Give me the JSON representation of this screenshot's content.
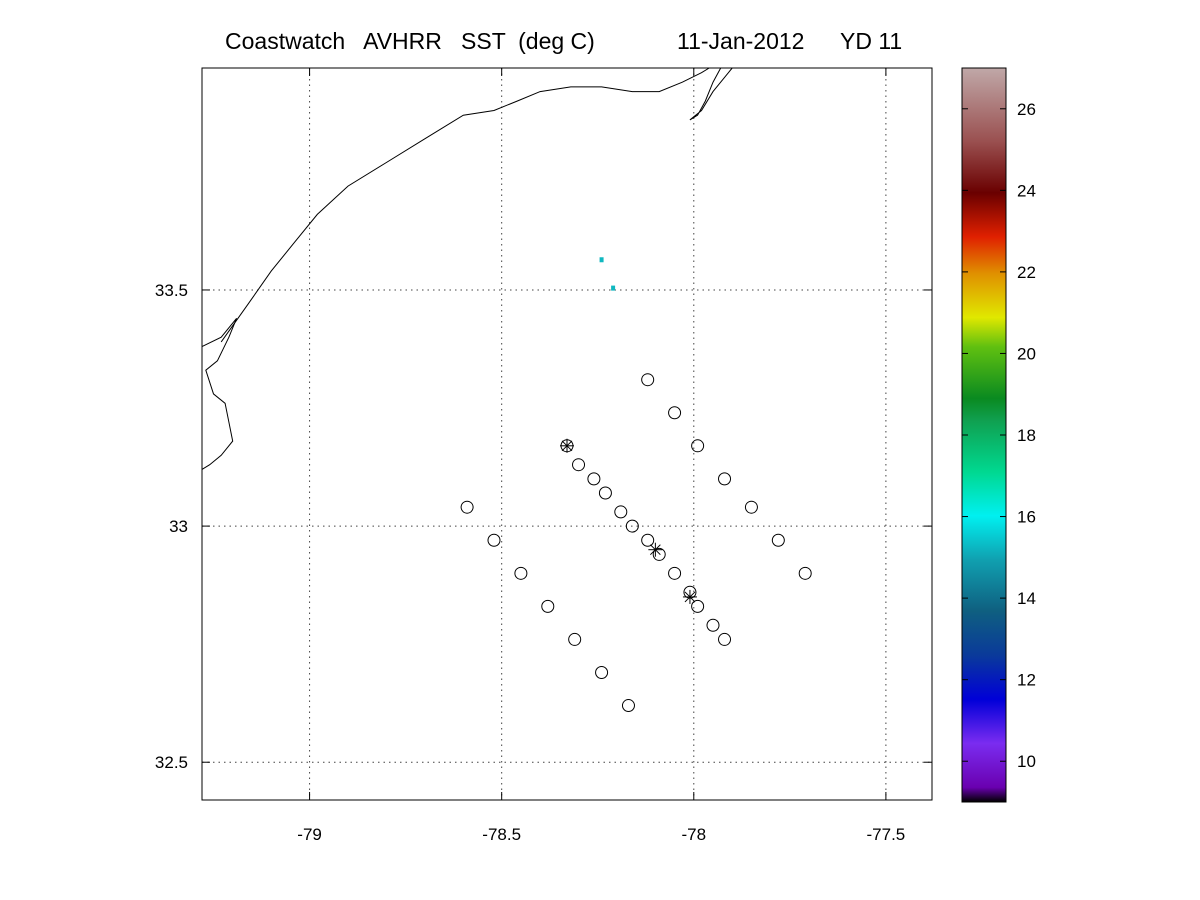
{
  "title": {
    "product": "Coastwatch   AVHRR   SST  (deg C)",
    "date": "11-Jan-2012",
    "yearday": "YD 11"
  },
  "chart_data": {
    "type": "scatter",
    "title": "Coastwatch   AVHRR   SST  (deg C)",
    "xlabel": "",
    "ylabel": "",
    "xlim": [
      -79.28,
      -77.38
    ],
    "ylim": [
      32.42,
      33.97
    ],
    "grid": true,
    "x_ticks": [
      -79,
      -78.5,
      -78,
      -77.5
    ],
    "x_tick_labels": [
      "-79",
      "-78.5",
      "-78",
      "-77.5"
    ],
    "y_ticks": [
      32.5,
      33,
      33.5
    ],
    "y_tick_labels": [
      "32.5",
      "33",
      "33.5"
    ],
    "stations_circle": [
      [
        -78.12,
        33.31
      ],
      [
        -78.05,
        33.24
      ],
      [
        -77.99,
        33.17
      ],
      [
        -77.92,
        33.1
      ],
      [
        -77.85,
        33.04
      ],
      [
        -77.78,
        32.97
      ],
      [
        -77.71,
        32.9
      ],
      [
        -78.33,
        33.17
      ],
      [
        -78.3,
        33.13
      ],
      [
        -78.26,
        33.1
      ],
      [
        -78.23,
        33.07
      ],
      [
        -78.19,
        33.03
      ],
      [
        -78.16,
        33.0
      ],
      [
        -78.12,
        32.97
      ],
      [
        -78.09,
        32.94
      ],
      [
        -78.05,
        32.9
      ],
      [
        -78.01,
        32.86
      ],
      [
        -77.99,
        32.83
      ],
      [
        -77.95,
        32.79
      ],
      [
        -77.92,
        32.76
      ],
      [
        -78.59,
        33.04
      ],
      [
        -78.52,
        32.97
      ],
      [
        -78.45,
        32.9
      ],
      [
        -78.38,
        32.83
      ],
      [
        -78.31,
        32.76
      ],
      [
        -78.24,
        32.69
      ],
      [
        -78.17,
        32.62
      ]
    ],
    "stations_star": [
      [
        -78.33,
        33.17
      ],
      [
        -78.1,
        32.95
      ],
      [
        -78.01,
        32.85
      ]
    ],
    "sst_pixels": [
      {
        "lon": -78.24,
        "lat": 33.565,
        "value": 14.5
      },
      {
        "lon": -78.21,
        "lat": 33.505,
        "value": 14.5
      }
    ],
    "colorbar": {
      "range": [
        9,
        27
      ],
      "ticks": [
        10,
        12,
        14,
        16,
        18,
        20,
        22,
        24,
        26
      ],
      "tick_labels": [
        "10",
        "12",
        "14",
        "16",
        "18",
        "20",
        "22",
        "24",
        "26"
      ]
    },
    "coastline": [
      [
        -79.28,
        33.38
      ],
      [
        -79.23,
        33.4
      ],
      [
        -79.19,
        33.44
      ],
      [
        -79.21,
        33.4
      ],
      [
        -79.24,
        33.35
      ],
      [
        -79.27,
        33.33
      ],
      [
        -79.25,
        33.28
      ],
      [
        -79.22,
        33.26
      ],
      [
        -79.21,
        33.22
      ],
      [
        -79.2,
        33.18
      ],
      [
        -79.23,
        33.15
      ],
      [
        -79.26,
        33.13
      ],
      [
        -79.28,
        33.12
      ]
    ],
    "coastline_main": [
      [
        -79.23,
        33.39
      ],
      [
        -79.16,
        33.47
      ],
      [
        -79.1,
        33.54
      ],
      [
        -79.04,
        33.6
      ],
      [
        -78.98,
        33.66
      ],
      [
        -78.9,
        33.72
      ],
      [
        -78.8,
        33.77
      ],
      [
        -78.7,
        33.82
      ],
      [
        -78.6,
        33.87
      ],
      [
        -78.52,
        33.88
      ],
      [
        -78.46,
        33.9
      ],
      [
        -78.4,
        33.92
      ],
      [
        -78.32,
        33.93
      ],
      [
        -78.24,
        33.93
      ],
      [
        -78.16,
        33.92
      ],
      [
        -78.09,
        33.92
      ],
      [
        -78.03,
        33.94
      ],
      [
        -77.98,
        33.96
      ],
      [
        -77.96,
        33.97
      ]
    ],
    "coastline_island": [
      [
        -77.93,
        33.97
      ],
      [
        -77.95,
        33.94
      ],
      [
        -77.97,
        33.9
      ],
      [
        -77.99,
        33.87
      ],
      [
        -78.01,
        33.86
      ],
      [
        -77.98,
        33.88
      ],
      [
        -77.95,
        33.92
      ],
      [
        -77.91,
        33.96
      ],
      [
        -77.9,
        33.97
      ]
    ]
  }
}
